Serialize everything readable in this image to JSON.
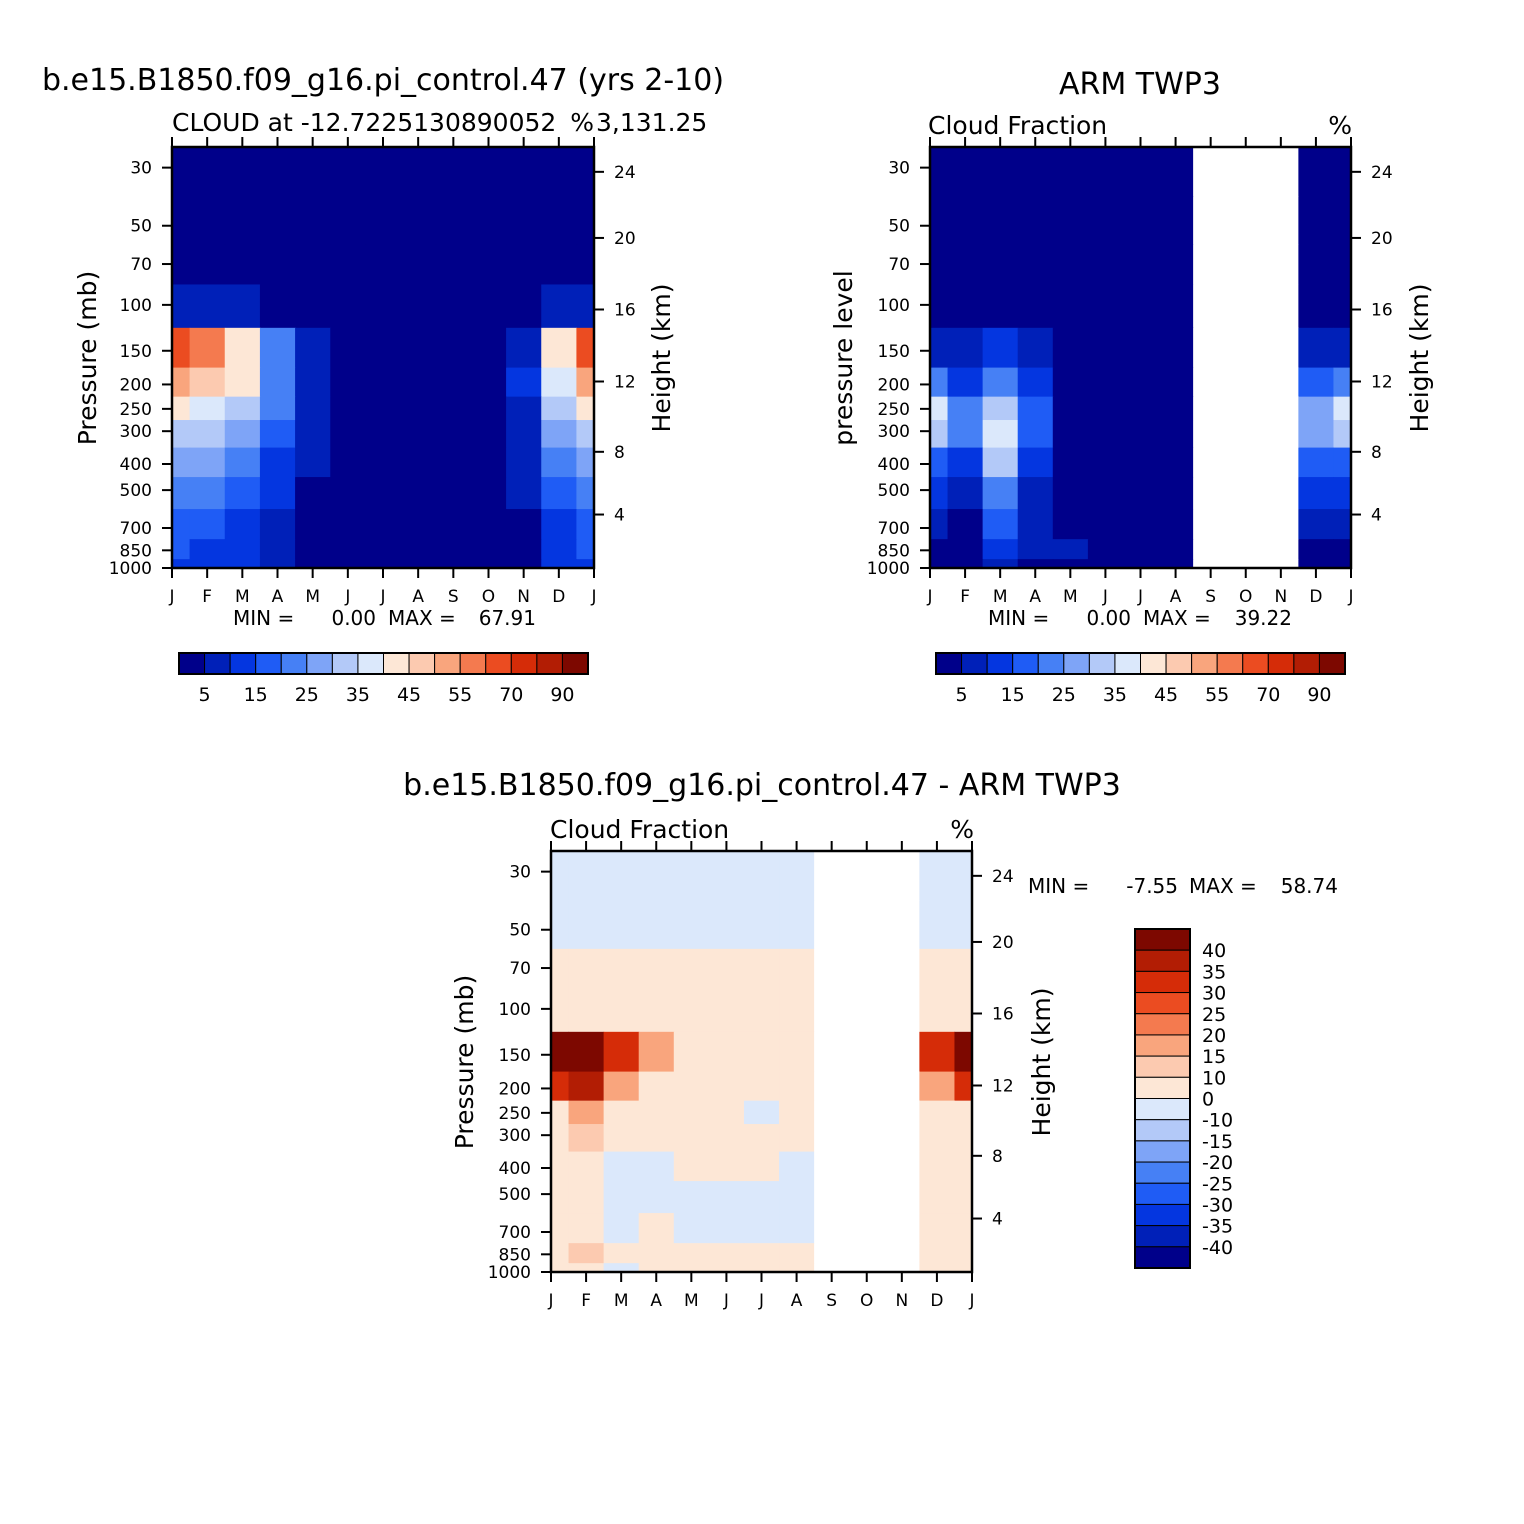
{
  "chart_data": [
    {
      "type": "heatmap",
      "title": "b.e15.B1850.f09_g16.pi_control.47 (yrs 2-10)",
      "subtitle_left": "CLOUD at -12.7225130890052",
      "subtitle_right": "%",
      "subtitle_tail": "3,131.25",
      "ylabel": "Pressure (mb)",
      "ylabel_right": "Height (km)",
      "months": [
        "J",
        "F",
        "M",
        "A",
        "M",
        "J",
        "J",
        "A",
        "S",
        "O",
        "N",
        "D",
        "J"
      ],
      "pressure_ticks": [
        "30",
        "50",
        "70",
        "100",
        "150",
        "200",
        "250",
        "300",
        "400",
        "500",
        "700",
        "850",
        "1000"
      ],
      "height_ticks": [
        "24",
        "20",
        "16",
        "12",
        "8",
        "4"
      ],
      "stats": {
        "min_label": "MIN =",
        "min": "0.00",
        "max_label": "MAX =",
        "max": "67.91"
      },
      "levels": [
        5,
        10,
        15,
        20,
        25,
        30,
        35,
        40,
        45,
        50,
        55,
        60,
        65,
        70,
        80,
        90
      ],
      "colorbar_labels": [
        "5",
        "15",
        "25",
        "35",
        "45",
        "55",
        "70",
        "90"
      ],
      "colors": [
        "#00008a",
        "#0020b8",
        "#0436e0",
        "#1f5cf5",
        "#4680f5",
        "#7ea4f7",
        "#b3c9f8",
        "#dbe8fb",
        "#fde7d6",
        "#fccab0",
        "#f9a57d",
        "#f47a4f",
        "#eb4c21",
        "#d52c08",
        "#b21d04",
        "#7d0800"
      ],
      "grid": [
        [
          0,
          0,
          0,
          0,
          0,
          0,
          0,
          0,
          0,
          0,
          0,
          0,
          0
        ],
        [
          0,
          0,
          0,
          0,
          0,
          0,
          0,
          0,
          0,
          0,
          0,
          0,
          0
        ],
        [
          2,
          1,
          1,
          0,
          0,
          0,
          0,
          0,
          0,
          0,
          0,
          1,
          2
        ],
        [
          9,
          7,
          5,
          3,
          1,
          0,
          0,
          0,
          0,
          0,
          1,
          5,
          9
        ],
        [
          62,
          55,
          42,
          22,
          6,
          3,
          3,
          3,
          3,
          3,
          8,
          40,
          62
        ],
        [
          52,
          48,
          40,
          24,
          8,
          3,
          0,
          0,
          0,
          3,
          10,
          35,
          52
        ],
        [
          40,
          38,
          33,
          22,
          7,
          2,
          0,
          0,
          0,
          2,
          9,
          30,
          40
        ],
        [
          34,
          32,
          28,
          19,
          6,
          2,
          0,
          0,
          0,
          2,
          8,
          26,
          34
        ],
        [
          27,
          25,
          20,
          13,
          5,
          1,
          0,
          0,
          0,
          1,
          6,
          20,
          27
        ],
        [
          22,
          20,
          16,
          10,
          4,
          1,
          0,
          0,
          0,
          1,
          5,
          17,
          22
        ],
        [
          17,
          16,
          12,
          8,
          3,
          1,
          0,
          0,
          0,
          1,
          4,
          13,
          17
        ],
        [
          15,
          14,
          11,
          7,
          3,
          1,
          1,
          1,
          1,
          1,
          4,
          11,
          15
        ],
        [
          14,
          13,
          10,
          6,
          3,
          1,
          1,
          1,
          1,
          1,
          3,
          10,
          14
        ]
      ]
    },
    {
      "type": "heatmap",
      "title": "ARM TWP3",
      "subtitle_left": "Cloud Fraction",
      "subtitle_right": "%",
      "ylabel": "pressure level",
      "ylabel_right": "Height (km)",
      "months": [
        "J",
        "F",
        "M",
        "A",
        "M",
        "J",
        "J",
        "A",
        "S",
        "O",
        "N",
        "D",
        "J"
      ],
      "pressure_ticks": [
        "30",
        "50",
        "70",
        "100",
        "150",
        "200",
        "250",
        "300",
        "400",
        "500",
        "700",
        "850",
        "1000"
      ],
      "height_ticks": [
        "24",
        "20",
        "16",
        "12",
        "8",
        "4"
      ],
      "stats": {
        "min_label": "MIN =",
        "min": "0.00",
        "max_label": "MAX =",
        "max": "39.22"
      },
      "missing_months": [
        "S",
        "O",
        "N"
      ],
      "levels": [
        5,
        10,
        15,
        20,
        25,
        30,
        35,
        40,
        45,
        50,
        55,
        60,
        65,
        70,
        80,
        90
      ],
      "colorbar_labels": [
        "5",
        "15",
        "25",
        "35",
        "45",
        "55",
        "70",
        "90"
      ],
      "grid": [
        [
          0,
          0,
          0,
          0,
          0,
          0,
          0,
          0,
          null,
          null,
          null,
          0,
          0
        ],
        [
          0,
          0,
          0,
          0,
          0,
          0,
          0,
          0,
          null,
          null,
          null,
          0,
          0
        ],
        [
          0,
          0,
          0,
          0,
          0,
          0,
          0,
          0,
          null,
          null,
          null,
          0,
          0
        ],
        [
          3,
          1,
          3,
          1,
          0,
          0,
          0,
          0,
          null,
          null,
          null,
          2,
          3
        ],
        [
          8,
          5,
          10,
          7,
          2,
          0,
          0,
          0,
          null,
          null,
          null,
          6,
          8
        ],
        [
          20,
          13,
          22,
          14,
          3,
          0,
          0,
          0,
          null,
          null,
          null,
          16,
          20
        ],
        [
          35,
          22,
          32,
          18,
          4,
          0,
          0,
          0,
          null,
          null,
          null,
          28,
          35
        ],
        [
          30,
          20,
          36,
          16,
          3,
          0,
          0,
          0,
          null,
          null,
          null,
          25,
          30
        ],
        [
          18,
          12,
          30,
          12,
          3,
          0,
          0,
          0,
          null,
          null,
          null,
          16,
          18
        ],
        [
          10,
          7,
          24,
          9,
          2,
          0,
          0,
          0,
          null,
          null,
          null,
          10,
          10
        ],
        [
          5,
          4,
          16,
          6,
          2,
          0,
          0,
          0,
          null,
          null,
          null,
          6,
          5
        ],
        [
          4,
          3,
          10,
          5,
          6,
          0,
          0,
          0,
          null,
          null,
          null,
          4,
          4
        ],
        [
          3,
          2,
          6,
          3,
          2,
          0,
          0,
          0,
          null,
          null,
          null,
          3,
          3
        ]
      ]
    },
    {
      "type": "heatmap",
      "title": "b.e15.B1850.f09_g16.pi_control.47 - ARM TWP3",
      "subtitle_left": "Cloud Fraction",
      "subtitle_right": "%",
      "ylabel": "Pressure (mb)",
      "ylabel_right": "Height (km)",
      "months": [
        "J",
        "F",
        "M",
        "A",
        "M",
        "J",
        "J",
        "A",
        "S",
        "O",
        "N",
        "D",
        "J"
      ],
      "pressure_ticks": [
        "30",
        "50",
        "70",
        "100",
        "150",
        "200",
        "250",
        "300",
        "400",
        "500",
        "700",
        "850",
        "1000"
      ],
      "height_ticks": [
        "24",
        "20",
        "16",
        "12",
        "8",
        "4"
      ],
      "stats": {
        "min_label": "MIN =",
        "min": "-7.55",
        "max_label": "MAX =",
        "max": "58.74"
      },
      "missing_months": [
        "S",
        "O",
        "N"
      ],
      "levels": [
        -40,
        -35,
        -30,
        -25,
        -20,
        -15,
        -10,
        0,
        10,
        15,
        20,
        25,
        30,
        35,
        40
      ],
      "colorbar_labels": [
        "40",
        "35",
        "30",
        "25",
        "20",
        "15",
        "10",
        "0",
        "-10",
        "-15",
        "-20",
        "-25",
        "-30",
        "-35",
        "-40"
      ],
      "colors": [
        "#00008a",
        "#0020b8",
        "#0436e0",
        "#1f5cf5",
        "#4680f5",
        "#7ea4f7",
        "#b3c9f8",
        "#dbe8fb",
        "#fde7d6",
        "#fccab0",
        "#f9a57d",
        "#f47a4f",
        "#eb4c21",
        "#d52c08",
        "#b21d04",
        "#7d0800"
      ],
      "grid": [
        [
          -2,
          -2,
          -2,
          -2,
          -2,
          -2,
          -2,
          -2,
          null,
          null,
          null,
          -2,
          -2
        ],
        [
          -2,
          -2,
          -2,
          -2,
          -2,
          -2,
          -2,
          -2,
          null,
          null,
          null,
          -2,
          -2
        ],
        [
          2,
          2,
          2,
          2,
          1,
          2,
          2,
          2,
          null,
          null,
          null,
          2,
          2
        ],
        [
          6,
          6,
          3,
          3,
          2,
          2,
          2,
          2,
          null,
          null,
          null,
          3,
          6
        ],
        [
          54,
          50,
          32,
          15,
          3,
          3,
          3,
          3,
          null,
          null,
          null,
          34,
          54
        ],
        [
          32,
          35,
          18,
          8,
          4,
          3,
          3,
          3,
          null,
          null,
          null,
          19,
          32
        ],
        [
          8,
          16,
          6,
          4,
          2,
          3,
          -2,
          3,
          null,
          null,
          null,
          5,
          8
        ],
        [
          4,
          10,
          3,
          2,
          2,
          2,
          2,
          2,
          null,
          null,
          null,
          2,
          4
        ],
        [
          3,
          8,
          -2,
          -2,
          2,
          2,
          2,
          -2,
          null,
          null,
          null,
          6,
          3
        ],
        [
          4,
          6,
          -2,
          -2,
          -2,
          -2,
          -2,
          -2,
          null,
          null,
          null,
          3,
          4
        ],
        [
          4,
          3,
          -2,
          2,
          -2,
          -2,
          -2,
          -2,
          null,
          null,
          null,
          3,
          4
        ],
        [
          9,
          11,
          2,
          2,
          2,
          2,
          2,
          2,
          null,
          null,
          null,
          2,
          9
        ],
        [
          3,
          2,
          -2,
          2,
          2,
          2,
          2,
          2,
          null,
          null,
          null,
          2,
          3
        ]
      ]
    }
  ]
}
